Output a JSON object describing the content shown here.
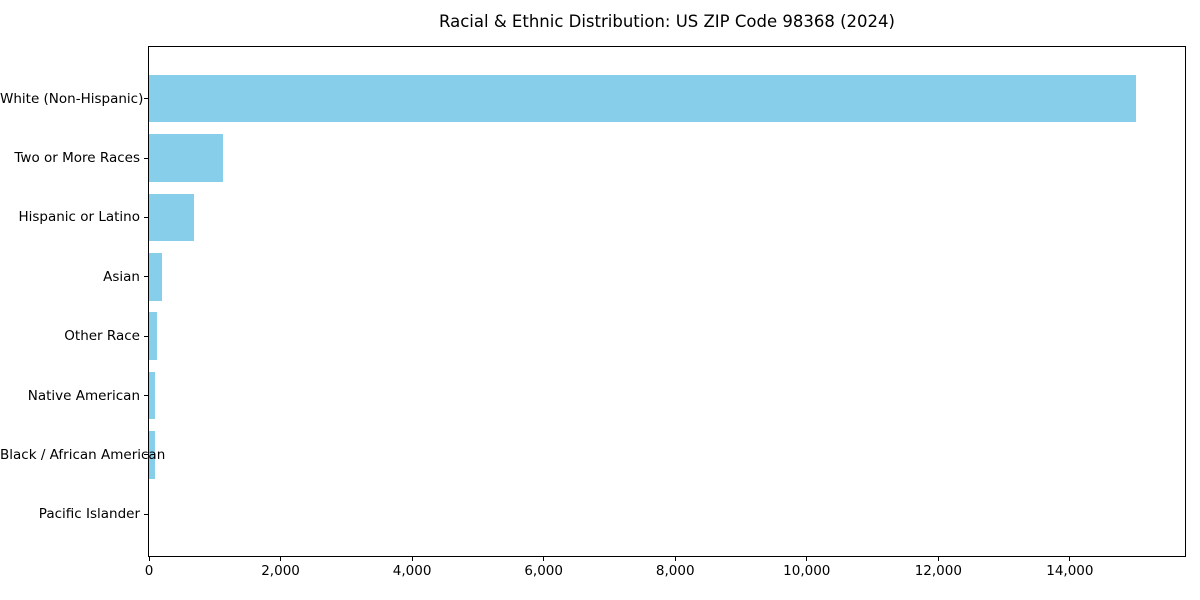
{
  "figure": {
    "title": "Racial & Ethnic Distribution: US ZIP Code 98368 (2024)"
  },
  "chart_data": {
    "type": "bar",
    "orientation": "horizontal",
    "title": "Racial & Ethnic Distribution: US ZIP Code 98368 (2024)",
    "categories": [
      "White (Non-Hispanic)",
      "Two or More Races",
      "Hispanic or Latino",
      "Asian",
      "Other Race",
      "Native American",
      "Black / African American",
      "Pacific Islander"
    ],
    "values": [
      15000,
      1120,
      690,
      200,
      120,
      95,
      85,
      0
    ],
    "xlabel": "",
    "ylabel": "",
    "xlim": [
      0,
      15750
    ],
    "xticks": [
      0,
      2000,
      4000,
      6000,
      8000,
      10000,
      12000,
      14000
    ],
    "xtick_labels": [
      "0",
      "2,000",
      "4,000",
      "6,000",
      "8,000",
      "10,000",
      "12,000",
      "14,000"
    ],
    "bar_color": "#87CEEB",
    "background_color": "#FFFFFF",
    "spine_color": "#000000",
    "text_color": "#000000",
    "grid": false,
    "legend": "none"
  }
}
